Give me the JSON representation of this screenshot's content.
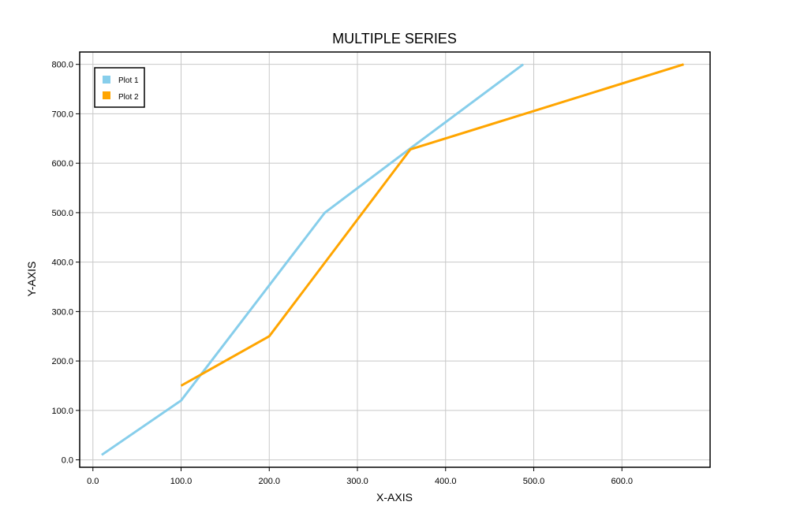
{
  "chart_data": {
    "type": "line",
    "title": "MULTIPLE SERIES",
    "xlabel": "X-AXIS",
    "ylabel": "Y-AXIS",
    "xlim": [
      -15,
      700
    ],
    "ylim": [
      -15,
      825
    ],
    "x_ticks": [
      0,
      100,
      200,
      300,
      400,
      500,
      600
    ],
    "x_tick_labels": [
      "0.0",
      "100.0",
      "200.0",
      "300.0",
      "400.0",
      "500.0",
      "600.0"
    ],
    "y_ticks": [
      0,
      100,
      200,
      300,
      400,
      500,
      600,
      700,
      800
    ],
    "y_tick_labels": [
      "0.0",
      "100.0",
      "200.0",
      "300.0",
      "400.0",
      "500.0",
      "600.0",
      "700.0",
      "800.0"
    ],
    "grid": true,
    "legend_placement": "top-left",
    "series": [
      {
        "name": "Plot 1",
        "color": "#87CEEB",
        "x": [
          10,
          100,
          263,
          360,
          488
        ],
        "y": [
          10,
          120,
          500,
          630,
          800
        ]
      },
      {
        "name": "Plot 2",
        "color": "#FFA500",
        "x": [
          100,
          200,
          360,
          670
        ],
        "y": [
          150,
          250,
          628,
          800
        ]
      }
    ]
  }
}
